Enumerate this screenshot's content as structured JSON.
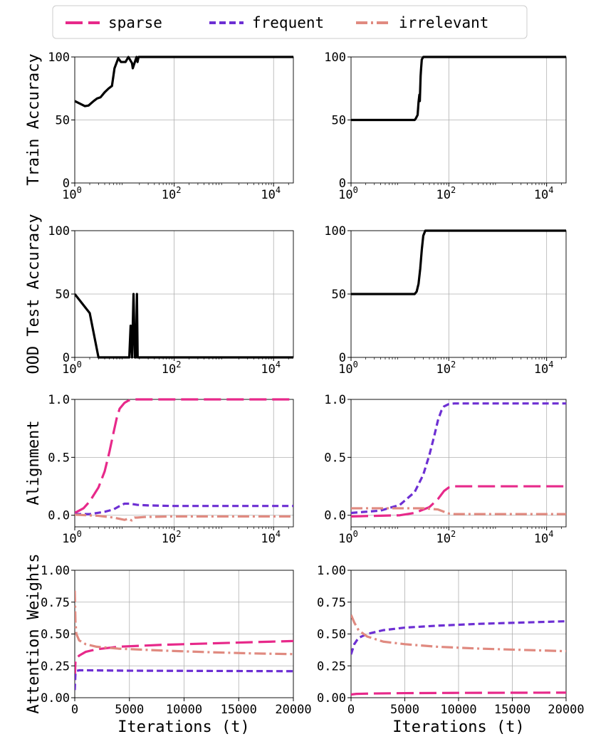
{
  "legend": [
    {
      "name": "sparse",
      "color": "#e7298a",
      "dash": "long"
    },
    {
      "name": "frequent",
      "color": "#6d2fd3",
      "dash": "short"
    },
    {
      "name": "irrelevant",
      "color": "#e08a80",
      "dash": "dashdot"
    }
  ],
  "row_labels": [
    "Train Accuracy",
    "OOD Test Accuracy",
    "Alignment",
    "Attention Weights"
  ],
  "x_label": "Iterations (t)",
  "log_ticks": [
    "0",
    "2",
    "4"
  ],
  "log_tick_base": "10",
  "lin_ticks": [
    "0",
    "5000",
    "10000",
    "15000",
    "20000"
  ],
  "acc_ticks": [
    "0",
    "50",
    "100"
  ],
  "align_ticks": [
    "0.0",
    "0.5",
    "1.0"
  ],
  "attn_ticks": [
    "0.00",
    "0.25",
    "0.50",
    "0.75",
    "1.00"
  ],
  "chart_data": [
    {
      "id": "train_left",
      "type": "line",
      "xscale": "log",
      "xlim": [
        1,
        25000
      ],
      "ylim": [
        0,
        100
      ],
      "ylabel": "Train Accuracy",
      "series": [
        {
          "name": "accuracy",
          "color": "#000000",
          "x": [
            1,
            1.6,
            1.9,
            2.4,
            2.8,
            3.3,
            4,
            4.8,
            5.6,
            6.3,
            7.5,
            8.5,
            10.5,
            12,
            14.2,
            14.7,
            17.5,
            18.3,
            19.2,
            25000
          ],
          "y": [
            65,
            61,
            61.5,
            65,
            67,
            68,
            72,
            75,
            77,
            91,
            99,
            96,
            96,
            100,
            95,
            91,
            100,
            96,
            100,
            100
          ]
        }
      ]
    },
    {
      "id": "train_right",
      "type": "line",
      "xscale": "log",
      "xlim": [
        1,
        25000
      ],
      "ylim": [
        0,
        100
      ],
      "ylabel": "",
      "series": [
        {
          "name": "accuracy",
          "color": "#000000",
          "x": [
            1,
            20,
            21,
            23,
            24,
            25,
            25.5,
            26,
            26.5,
            27,
            28,
            30,
            32,
            25000
          ],
          "y": [
            50,
            50,
            51,
            54,
            64,
            70,
            65,
            75,
            85,
            90,
            98,
            100,
            100,
            100
          ]
        }
      ]
    },
    {
      "id": "ood_left",
      "type": "line",
      "xscale": "log",
      "xlim": [
        1,
        25000
      ],
      "ylim": [
        0,
        100
      ],
      "ylabel": "OOD Test Accuracy",
      "series": [
        {
          "name": "accuracy",
          "color": "#000000",
          "x": [
            1,
            2,
            3,
            12.5,
            13.3,
            14.2,
            15.2,
            16.2,
            17,
            17.8,
            18.4,
            19,
            25000
          ],
          "y": [
            50,
            35,
            0,
            0,
            25,
            0,
            50,
            0,
            0,
            50,
            0,
            0,
            0
          ]
        }
      ]
    },
    {
      "id": "ood_right",
      "type": "line",
      "xscale": "log",
      "xlim": [
        1,
        25000
      ],
      "ylim": [
        0,
        100
      ],
      "ylabel": "",
      "series": [
        {
          "name": "accuracy",
          "color": "#000000",
          "x": [
            1,
            20,
            22,
            24,
            26,
            28,
            30,
            33,
            36,
            25000
          ],
          "y": [
            50,
            50,
            52,
            58,
            70,
            85,
            96,
            100,
            100,
            100
          ]
        }
      ]
    },
    {
      "id": "align_left",
      "type": "line",
      "xscale": "log",
      "xlim": [
        1,
        25000
      ],
      "ylim": [
        -0.1,
        1.0
      ],
      "ylabel": "Alignment",
      "series": [
        {
          "name": "sparse",
          "color": "#e7298a",
          "dash": "long",
          "x": [
            1,
            1.5,
            2,
            3,
            4,
            5,
            6,
            7,
            8,
            10,
            12,
            15,
            18,
            25000
          ],
          "y": [
            0.02,
            0.06,
            0.12,
            0.24,
            0.38,
            0.55,
            0.71,
            0.84,
            0.92,
            0.97,
            0.99,
            1.0,
            1.0,
            1.0
          ]
        },
        {
          "name": "frequent",
          "color": "#6d2fd3",
          "dash": "short",
          "x": [
            1,
            2,
            4,
            6,
            8,
            10,
            13,
            18,
            30,
            100,
            25000
          ],
          "y": [
            0.01,
            0.01,
            0.03,
            0.05,
            0.08,
            0.1,
            0.1,
            0.09,
            0.085,
            0.08,
            0.08
          ]
        },
        {
          "name": "irrelevant",
          "color": "#e08a80",
          "dash": "dashdot",
          "x": [
            1,
            3,
            6,
            10,
            12,
            14,
            16,
            18,
            25,
            100,
            25000
          ],
          "y": [
            0.005,
            -0.005,
            -0.02,
            -0.04,
            -0.03,
            -0.045,
            -0.02,
            -0.02,
            -0.015,
            -0.01,
            -0.01
          ]
        }
      ]
    },
    {
      "id": "align_right",
      "type": "line",
      "xscale": "log",
      "xlim": [
        1,
        25000
      ],
      "ylim": [
        -0.1,
        1.0
      ],
      "ylabel": "",
      "series": [
        {
          "name": "sparse",
          "color": "#e7298a",
          "dash": "long",
          "x": [
            1,
            10,
            20,
            40,
            60,
            80,
            100,
            130,
            200,
            25000
          ],
          "y": [
            -0.01,
            0.0,
            0.02,
            0.07,
            0.14,
            0.21,
            0.24,
            0.25,
            0.25,
            0.25
          ]
        },
        {
          "name": "frequent",
          "color": "#6d2fd3",
          "dash": "short",
          "x": [
            1,
            4,
            10,
            20,
            30,
            40,
            50,
            60,
            70,
            80,
            100,
            130,
            200,
            25000
          ],
          "y": [
            0.02,
            0.04,
            0.09,
            0.2,
            0.35,
            0.52,
            0.68,
            0.82,
            0.9,
            0.94,
            0.96,
            0.965,
            0.965,
            0.965
          ]
        },
        {
          "name": "irrelevant",
          "color": "#e08a80",
          "dash": "dashdot",
          "x": [
            1,
            10,
            30,
            60,
            80,
            100,
            130,
            200,
            25000
          ],
          "y": [
            0.06,
            0.06,
            0.06,
            0.05,
            0.03,
            0.015,
            0.01,
            0.01,
            0.01
          ]
        }
      ]
    },
    {
      "id": "attn_left",
      "type": "line",
      "xscale": "linear",
      "xlim": [
        0,
        20000
      ],
      "ylim": [
        0,
        1.0
      ],
      "ylabel": "Attention Weights",
      "series": [
        {
          "name": "sparse",
          "color": "#e7298a",
          "dash": "long",
          "x": [
            0,
            60,
            150,
            400,
            1000,
            2000,
            4000,
            8000,
            12000,
            16000,
            20000
          ],
          "y": [
            0.15,
            0.28,
            0.31,
            0.33,
            0.36,
            0.38,
            0.4,
            0.415,
            0.425,
            0.435,
            0.445
          ]
        },
        {
          "name": "frequent",
          "color": "#6d2fd3",
          "dash": "short",
          "x": [
            0,
            60,
            150,
            400,
            1000,
            5000,
            20000
          ],
          "y": [
            0.06,
            0.19,
            0.21,
            0.215,
            0.215,
            0.212,
            0.208
          ]
        },
        {
          "name": "irrelevant",
          "color": "#e08a80",
          "dash": "dashdot",
          "x": [
            0,
            60,
            150,
            400,
            1000,
            2000,
            4000,
            8000,
            12000,
            16000,
            20000
          ],
          "y": [
            0.84,
            0.6,
            0.5,
            0.45,
            0.42,
            0.4,
            0.385,
            0.37,
            0.358,
            0.348,
            0.342
          ]
        }
      ]
    },
    {
      "id": "attn_right",
      "type": "line",
      "xscale": "linear",
      "xlim": [
        0,
        20000
      ],
      "ylim": [
        0,
        1.0
      ],
      "ylabel": "",
      "series": [
        {
          "name": "sparse",
          "color": "#e7298a",
          "dash": "long",
          "x": [
            0,
            500,
            2000,
            5000,
            10000,
            20000
          ],
          "y": [
            0.025,
            0.03,
            0.033,
            0.036,
            0.038,
            0.04
          ]
        },
        {
          "name": "frequent",
          "color": "#6d2fd3",
          "dash": "short",
          "x": [
            0,
            300,
            700,
            1500,
            3000,
            5000,
            8000,
            12000,
            16000,
            20000
          ],
          "y": [
            0.34,
            0.42,
            0.47,
            0.5,
            0.53,
            0.55,
            0.565,
            0.58,
            0.59,
            0.6
          ]
        },
        {
          "name": "irrelevant",
          "color": "#e08a80",
          "dash": "dashdot",
          "x": [
            0,
            300,
            700,
            1500,
            3000,
            5000,
            8000,
            12000,
            16000,
            20000
          ],
          "y": [
            0.65,
            0.59,
            0.53,
            0.48,
            0.44,
            0.42,
            0.4,
            0.385,
            0.375,
            0.365
          ]
        }
      ]
    }
  ]
}
